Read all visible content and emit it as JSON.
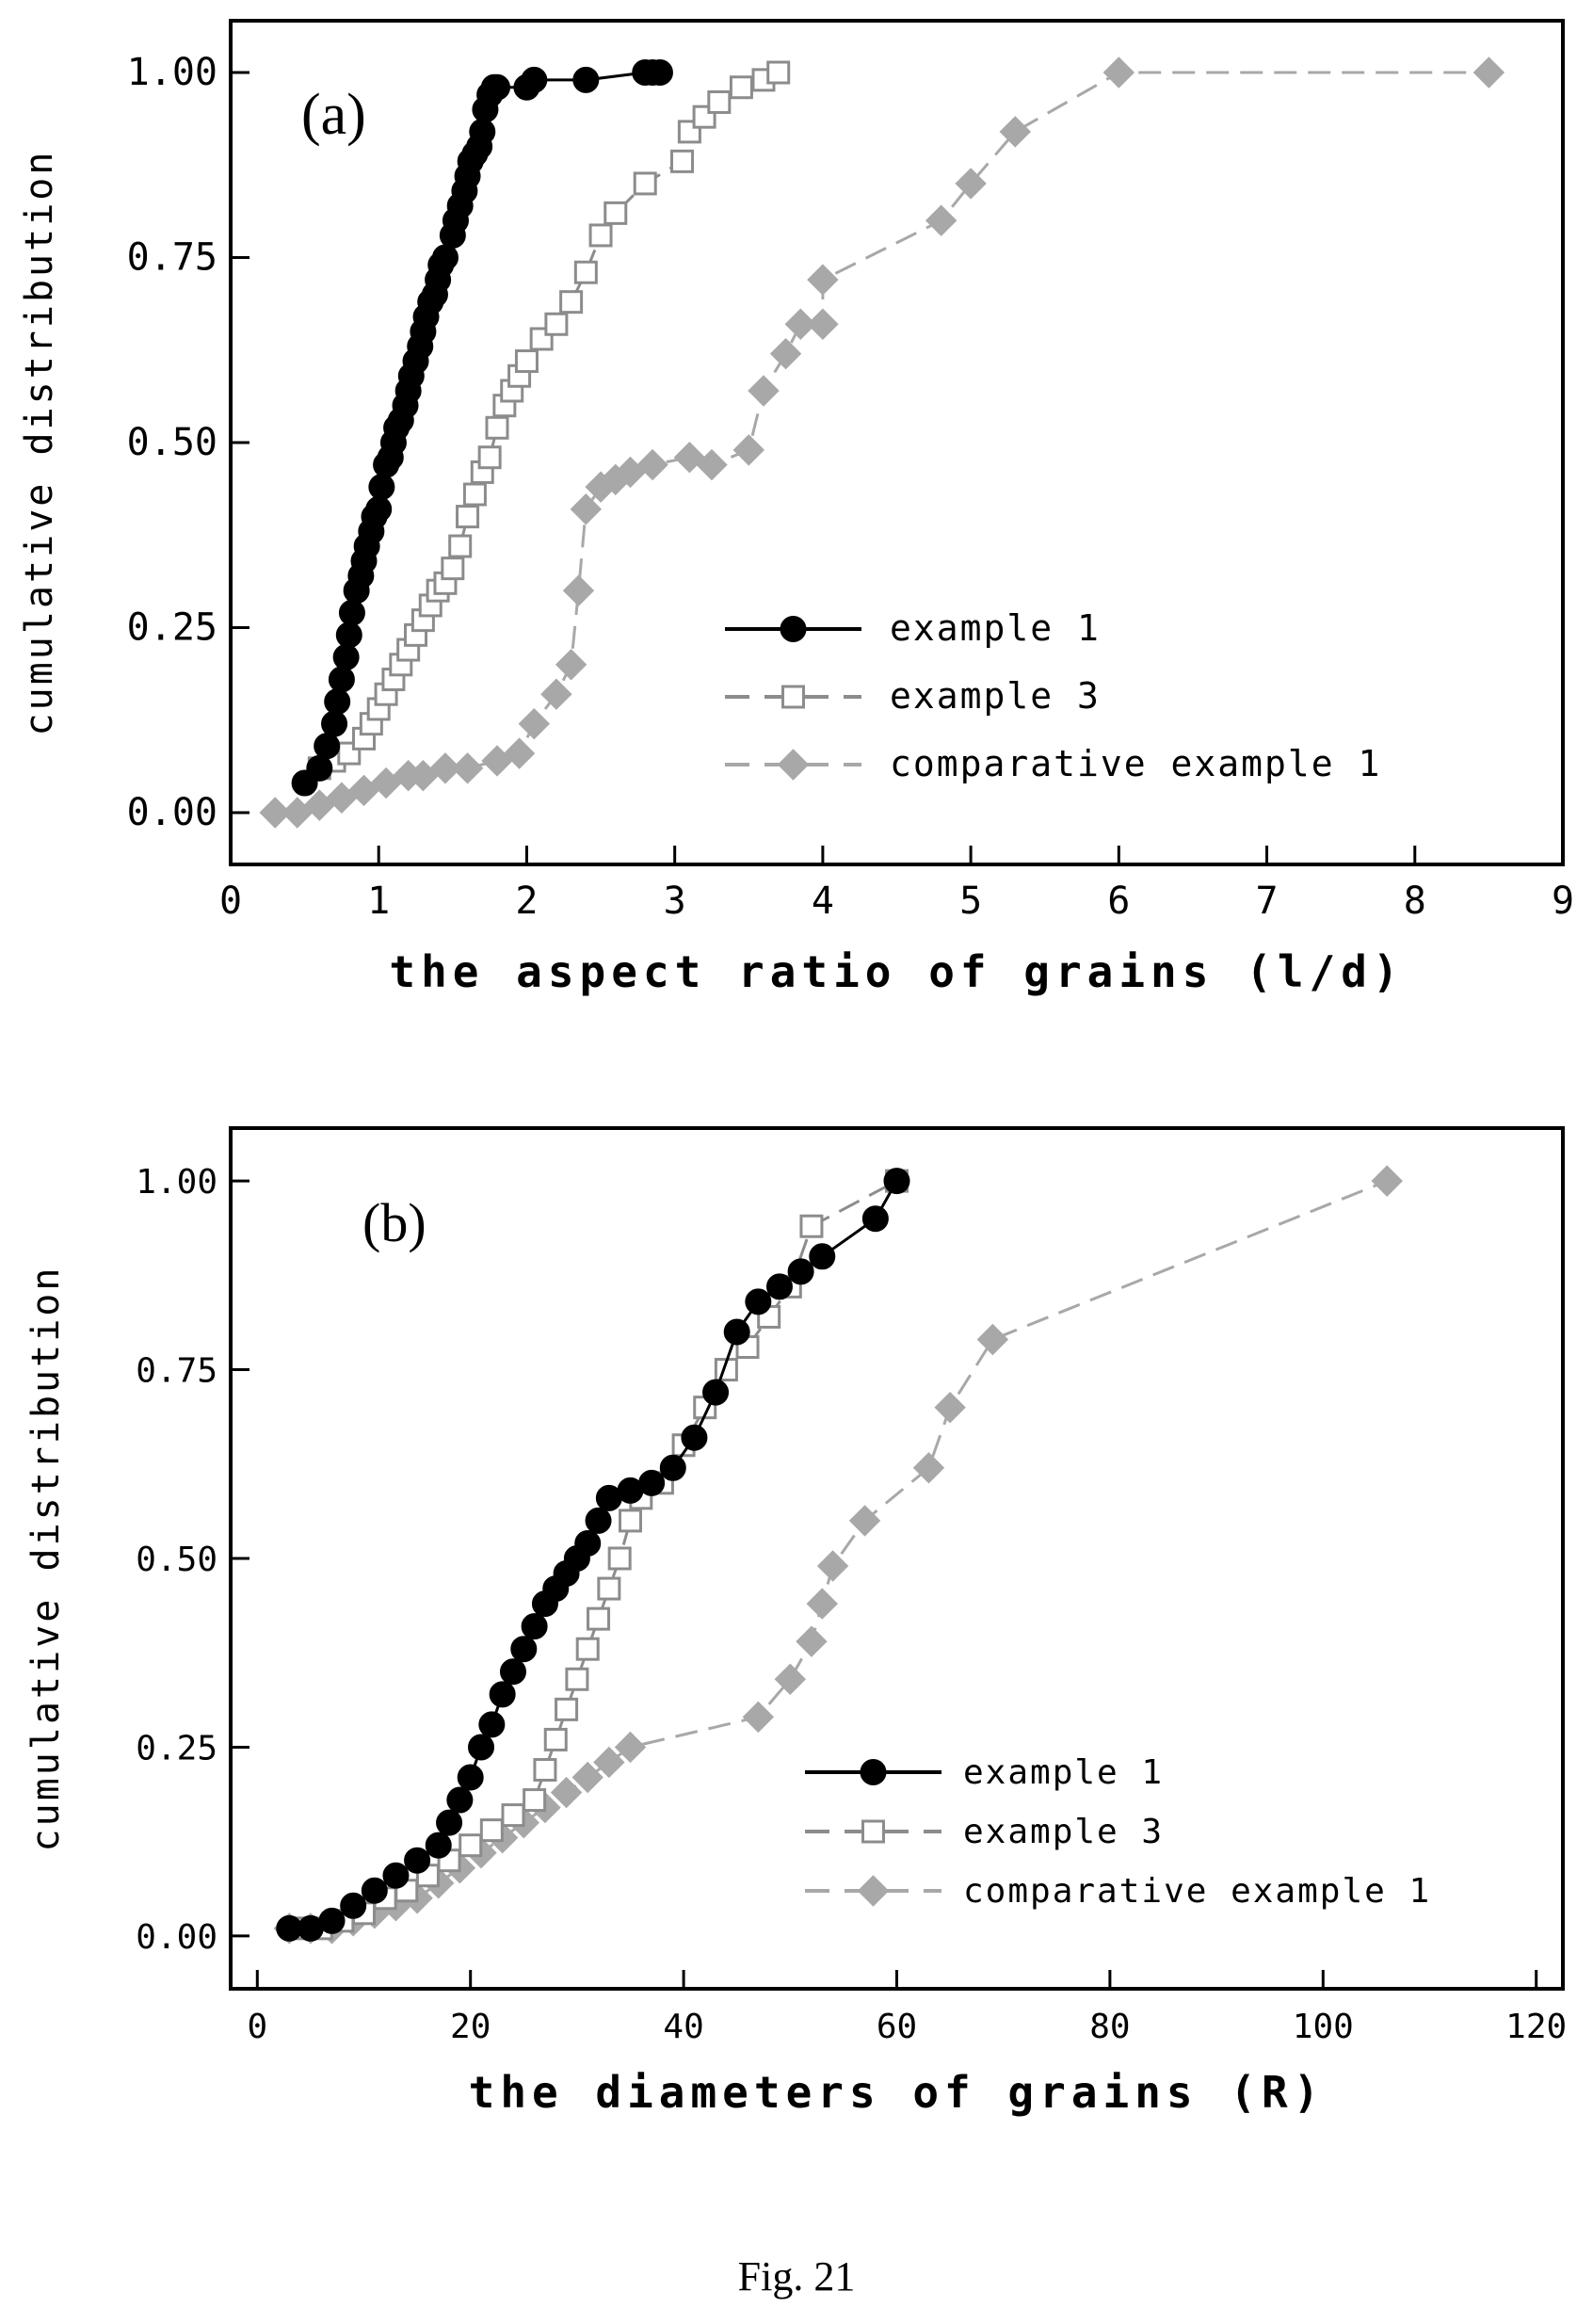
{
  "figure": {
    "caption": "Fig. 21"
  },
  "chart_data": [
    {
      "type": "scatter",
      "panel_label": "(a)",
      "xlabel": "the aspect ratio of grains (l/d)",
      "ylabel": "cumulative distribution",
      "xlim": [
        0,
        9
      ],
      "ylim": [
        -0.07,
        1.07
      ],
      "x_ticks": [
        "0",
        "1",
        "2",
        "3",
        "4",
        "5",
        "6",
        "7",
        "8",
        "9"
      ],
      "x_tick_values": [
        0,
        1,
        2,
        3,
        4,
        5,
        6,
        7,
        8,
        9
      ],
      "y_ticks": [
        "0.00",
        "0.25",
        "0.50",
        "0.75",
        "1.00"
      ],
      "y_tick_values": [
        0,
        0.25,
        0.5,
        0.75,
        1.0
      ],
      "grid": false,
      "legend_position": "bottom-right",
      "series": [
        {
          "name": "example 1",
          "color": "#000000",
          "marker": "circle",
          "line": "solid",
          "x": [
            0.5,
            0.6,
            0.65,
            0.7,
            0.72,
            0.75,
            0.78,
            0.8,
            0.82,
            0.85,
            0.88,
            0.9,
            0.92,
            0.95,
            0.97,
            1.0,
            1.02,
            1.05,
            1.08,
            1.1,
            1.12,
            1.15,
            1.18,
            1.2,
            1.22,
            1.25,
            1.28,
            1.3,
            1.32,
            1.35,
            1.38,
            1.4,
            1.42,
            1.45,
            1.5,
            1.52,
            1.55,
            1.58,
            1.6,
            1.62,
            1.65,
            1.68,
            1.7,
            1.72,
            1.75,
            1.78,
            1.8,
            2.0,
            2.05,
            2.4,
            2.8,
            2.85,
            2.9
          ],
          "y": [
            0.04,
            0.06,
            0.09,
            0.12,
            0.15,
            0.18,
            0.21,
            0.24,
            0.27,
            0.3,
            0.32,
            0.34,
            0.36,
            0.38,
            0.4,
            0.41,
            0.44,
            0.47,
            0.48,
            0.5,
            0.52,
            0.53,
            0.55,
            0.57,
            0.59,
            0.61,
            0.63,
            0.65,
            0.67,
            0.69,
            0.7,
            0.72,
            0.74,
            0.75,
            0.78,
            0.8,
            0.82,
            0.84,
            0.86,
            0.88,
            0.89,
            0.9,
            0.92,
            0.95,
            0.97,
            0.98,
            0.98,
            0.98,
            0.99,
            0.99,
            1.0,
            1.0,
            1.0
          ]
        },
        {
          "name": "example 3",
          "color": "#8c8c8c",
          "marker": "square",
          "line": "dashed",
          "x": [
            0.6,
            0.7,
            0.8,
            0.9,
            0.95,
            1.0,
            1.05,
            1.1,
            1.15,
            1.2,
            1.25,
            1.3,
            1.35,
            1.4,
            1.45,
            1.5,
            1.55,
            1.6,
            1.65,
            1.7,
            1.75,
            1.8,
            1.85,
            1.9,
            1.95,
            2.0,
            2.1,
            2.2,
            2.3,
            2.4,
            2.5,
            2.6,
            2.8,
            3.05,
            3.1,
            3.2,
            3.3,
            3.45,
            3.6,
            3.7
          ],
          "y": [
            0.06,
            0.07,
            0.08,
            0.1,
            0.12,
            0.14,
            0.16,
            0.18,
            0.2,
            0.22,
            0.24,
            0.26,
            0.28,
            0.3,
            0.31,
            0.33,
            0.36,
            0.4,
            0.43,
            0.46,
            0.48,
            0.52,
            0.55,
            0.57,
            0.59,
            0.61,
            0.64,
            0.66,
            0.69,
            0.73,
            0.78,
            0.81,
            0.85,
            0.88,
            0.92,
            0.94,
            0.96,
            0.98,
            0.99,
            1.0
          ]
        },
        {
          "name": "comparative example 1",
          "color": "#a8a8a8",
          "marker": "diamond",
          "line": "dashed",
          "x": [
            0.3,
            0.45,
            0.6,
            0.75,
            0.9,
            1.05,
            1.2,
            1.3,
            1.45,
            1.6,
            1.8,
            1.95,
            2.05,
            2.2,
            2.3,
            2.35,
            2.4,
            2.5,
            2.6,
            2.7,
            2.85,
            3.1,
            3.25,
            3.5,
            3.6,
            3.75,
            3.85,
            4.0,
            4.0,
            4.8,
            5.0,
            5.3,
            6.0,
            8.5
          ],
          "y": [
            0.0,
            0.0,
            0.01,
            0.02,
            0.03,
            0.04,
            0.05,
            0.05,
            0.06,
            0.06,
            0.07,
            0.08,
            0.12,
            0.16,
            0.2,
            0.3,
            0.41,
            0.44,
            0.45,
            0.46,
            0.47,
            0.48,
            0.47,
            0.49,
            0.57,
            0.62,
            0.66,
            0.66,
            0.72,
            0.8,
            0.85,
            0.92,
            1.0,
            1.0
          ]
        }
      ]
    },
    {
      "type": "scatter",
      "panel_label": "(b)",
      "xlabel": "the diameters of grains (R)",
      "ylabel": "cumulative distribution",
      "xlim": [
        -2.5,
        122.5
      ],
      "ylim": [
        -0.07,
        1.07
      ],
      "x_ticks": [
        "0",
        "20",
        "40",
        "60",
        "80",
        "100",
        "120"
      ],
      "x_tick_values": [
        0,
        20,
        40,
        60,
        80,
        100,
        120
      ],
      "y_ticks": [
        "0.00",
        "0.25",
        "0.50",
        "0.75",
        "1.00"
      ],
      "y_tick_values": [
        0,
        0.25,
        0.5,
        0.75,
        1.0
      ],
      "grid": false,
      "legend_position": "bottom-right",
      "series": [
        {
          "name": "example 1",
          "color": "#000000",
          "marker": "circle",
          "line": "solid",
          "x": [
            3,
            5,
            7,
            9,
            11,
            13,
            15,
            17,
            18,
            19,
            20,
            21,
            22,
            23,
            24,
            25,
            26,
            27,
            28,
            29,
            30,
            31,
            32,
            33,
            35,
            37,
            39,
            41,
            43,
            45,
            47,
            49,
            51,
            53,
            58,
            60
          ],
          "y": [
            0.01,
            0.01,
            0.02,
            0.04,
            0.06,
            0.08,
            0.1,
            0.12,
            0.15,
            0.18,
            0.21,
            0.25,
            0.28,
            0.32,
            0.35,
            0.38,
            0.41,
            0.44,
            0.46,
            0.48,
            0.5,
            0.52,
            0.55,
            0.58,
            0.59,
            0.6,
            0.62,
            0.66,
            0.72,
            0.8,
            0.84,
            0.86,
            0.88,
            0.9,
            0.95,
            1.0
          ]
        },
        {
          "name": "example 3",
          "color": "#8c8c8c",
          "marker": "square",
          "line": "dashed",
          "x": [
            4,
            6,
            8,
            10,
            12,
            14,
            16,
            18,
            20,
            22,
            24,
            26,
            27,
            28,
            29,
            30,
            31,
            32,
            33,
            34,
            35,
            36,
            38,
            40,
            42,
            44,
            46,
            48,
            50,
            52,
            60
          ],
          "y": [
            0.01,
            0.01,
            0.02,
            0.03,
            0.05,
            0.06,
            0.08,
            0.1,
            0.12,
            0.14,
            0.16,
            0.18,
            0.22,
            0.26,
            0.3,
            0.34,
            0.38,
            0.42,
            0.46,
            0.5,
            0.55,
            0.58,
            0.6,
            0.65,
            0.7,
            0.75,
            0.78,
            0.82,
            0.86,
            0.94,
            1.0
          ]
        },
        {
          "name": "comparative example 1",
          "color": "#a8a8a8",
          "marker": "diamond",
          "line": "dashed",
          "x": [
            3,
            5,
            7,
            9,
            11,
            13,
            15,
            17,
            19,
            21,
            23,
            25,
            27,
            29,
            31,
            33,
            35,
            47,
            50,
            52,
            53,
            54,
            57,
            63,
            65,
            69,
            106
          ],
          "y": [
            0.01,
            0.01,
            0.01,
            0.02,
            0.03,
            0.04,
            0.05,
            0.07,
            0.09,
            0.11,
            0.13,
            0.15,
            0.17,
            0.19,
            0.21,
            0.23,
            0.25,
            0.29,
            0.34,
            0.39,
            0.44,
            0.49,
            0.55,
            0.62,
            0.7,
            0.79,
            1.0
          ]
        }
      ]
    }
  ]
}
